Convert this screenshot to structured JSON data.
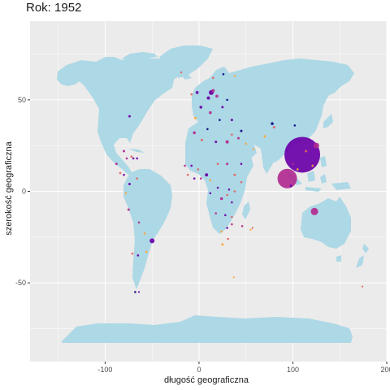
{
  "chart_data": {
    "type": "scatter",
    "title": "Rok: 1952",
    "xlabel": "długość geograficzna",
    "ylabel": "szerokość geograficzna",
    "xlim": [
      -180,
      200
    ],
    "ylim": [
      -93,
      93
    ],
    "x_ticks": [
      -100,
      0,
      100,
      200
    ],
    "y_ticks": [
      -50,
      0,
      50
    ],
    "grid": true,
    "legend": "none",
    "background": "#ebebeb",
    "land_color": "#add8e6",
    "points": [
      {
        "x": 110,
        "y": 20,
        "color": "#6a00a8",
        "size": 22
      },
      {
        "x": 94,
        "y": 7,
        "color": "#b12a90",
        "size": 12
      },
      {
        "x": 125,
        "y": 25,
        "color": "#b12a90",
        "size": 3.5
      },
      {
        "x": 123,
        "y": -11,
        "color": "#b12a90",
        "size": 4.5
      },
      {
        "x": -50,
        "y": -27,
        "color": "#6a00a8",
        "size": 3
      },
      {
        "x": 13,
        "y": 54,
        "color": "#6a00a8",
        "size": 3
      },
      {
        "x": 15,
        "y": 55,
        "color": "#b12a90",
        "size": 2
      },
      {
        "x": 78,
        "y": 37,
        "color": "#0d0887",
        "size": 1.8
      },
      {
        "x": 80,
        "y": 35,
        "color": "#e16462",
        "size": 1.5
      },
      {
        "x": 70,
        "y": 30,
        "color": "#fca636",
        "size": 1.5
      },
      {
        "x": 45,
        "y": 33,
        "color": "#0d0887",
        "size": 1.5
      },
      {
        "x": 42,
        "y": 29,
        "color": "#b12a90",
        "size": 1.5
      },
      {
        "x": 50,
        "y": 26,
        "color": "#fca636",
        "size": 1.3
      },
      {
        "x": 35,
        "y": 31,
        "color": "#e16462",
        "size": 1.3
      },
      {
        "x": 30,
        "y": 27,
        "color": "#b12a90",
        "size": 2
      },
      {
        "x": 18,
        "y": 27,
        "color": "#6a00a8",
        "size": 1.5
      },
      {
        "x": 3,
        "y": 28,
        "color": "#e16462",
        "size": 1.5
      },
      {
        "x": -5,
        "y": 32,
        "color": "#b12a90",
        "size": 1.8
      },
      {
        "x": 9,
        "y": 34,
        "color": "#0d0887",
        "size": 1.3
      },
      {
        "x": 12,
        "y": 43,
        "color": "#b12a90",
        "size": 1.8
      },
      {
        "x": -4,
        "y": 40,
        "color": "#fca636",
        "size": 1.5
      },
      {
        "x": 2,
        "y": 46,
        "color": "#6a00a8",
        "size": 1.8
      },
      {
        "x": 10,
        "y": 51,
        "color": "#6a00a8",
        "size": 2
      },
      {
        "x": -2,
        "y": 54,
        "color": "#6a00a8",
        "size": 1.8
      },
      {
        "x": 19,
        "y": 52,
        "color": "#b12a90",
        "size": 1.8
      },
      {
        "x": 25,
        "y": 46,
        "color": "#6a00a8",
        "size": 1.5
      },
      {
        "x": 22,
        "y": 39,
        "color": "#0d0887",
        "size": 1.3
      },
      {
        "x": 15,
        "y": 62,
        "color": "#e16462",
        "size": 1.3
      },
      {
        "x": 26,
        "y": 64,
        "color": "#0d0887",
        "size": 1.3
      },
      {
        "x": -8,
        "y": 53,
        "color": "#e16462",
        "size": 1.3
      },
      {
        "x": -19,
        "y": 65,
        "color": "#e16462",
        "size": 1.2
      },
      {
        "x": 30,
        "y": 50,
        "color": "#0d0887",
        "size": 1.3
      },
      {
        "x": 35,
        "y": 39,
        "color": "#6a00a8",
        "size": 1.5
      },
      {
        "x": 38,
        "y": 9,
        "color": "#e16462",
        "size": 1.5
      },
      {
        "x": 30,
        "y": 15,
        "color": "#b12a90",
        "size": 1.5
      },
      {
        "x": 45,
        "y": 15,
        "color": "#6a00a8",
        "size": 1.3
      },
      {
        "x": 20,
        "y": 15,
        "color": "#e16462",
        "size": 1.3
      },
      {
        "x": 8,
        "y": 9,
        "color": "#6a00a8",
        "size": 2
      },
      {
        "x": -1,
        "y": 12,
        "color": "#e16462",
        "size": 1.3
      },
      {
        "x": -8,
        "y": 14,
        "color": "#6a00a8",
        "size": 1.3
      },
      {
        "x": -15,
        "y": 14,
        "color": "#b12a90",
        "size": 1.3
      },
      {
        "x": -12,
        "y": 9,
        "color": "#e16462",
        "size": 1.3
      },
      {
        "x": -5,
        "y": 7,
        "color": "#6a00a8",
        "size": 1.3
      },
      {
        "x": 2,
        "y": 7,
        "color": "#b12a90",
        "size": 1.3
      },
      {
        "x": 12,
        "y": 6,
        "color": "#fca636",
        "size": 1.3
      },
      {
        "x": 20,
        "y": 2,
        "color": "#6a00a8",
        "size": 1.3
      },
      {
        "x": 12,
        "y": -1,
        "color": "#6a00a8",
        "size": 1.3
      },
      {
        "x": 24,
        "y": -4,
        "color": "#b12a90",
        "size": 1.8
      },
      {
        "x": 30,
        "y": -2,
        "color": "#e16462",
        "size": 1.3
      },
      {
        "x": 32,
        "y": 1,
        "color": "#6a00a8",
        "size": 1.3
      },
      {
        "x": 38,
        "y": 0,
        "color": "#e16462",
        "size": 1.3
      },
      {
        "x": 45,
        "y": 5,
        "color": "#e16462",
        "size": 1.3
      },
      {
        "x": 35,
        "y": -6,
        "color": "#6a00a8",
        "size": 1.3
      },
      {
        "x": 18,
        "y": -12,
        "color": "#b12a90",
        "size": 1.3
      },
      {
        "x": 28,
        "y": -13,
        "color": "#6a00a8",
        "size": 1.3
      },
      {
        "x": 30,
        "y": -20,
        "color": "#6a00a8",
        "size": 1.3
      },
      {
        "x": 35,
        "y": -14,
        "color": "#e16462",
        "size": 1.3
      },
      {
        "x": 35,
        "y": -18,
        "color": "#b12a90",
        "size": 1.3
      },
      {
        "x": 24,
        "y": -22,
        "color": "#fca636",
        "size": 1.3
      },
      {
        "x": 25,
        "y": -29,
        "color": "#fca636",
        "size": 1.5
      },
      {
        "x": 31,
        "y": -26,
        "color": "#e16462",
        "size": 1.3
      },
      {
        "x": 46,
        "y": -19,
        "color": "#b12a90",
        "size": 1.3
      },
      {
        "x": 57,
        "y": -20,
        "color": "#e16462",
        "size": 1.2
      },
      {
        "x": 55,
        "y": -21,
        "color": "#fca636",
        "size": 1.2
      },
      {
        "x": 37,
        "y": -47,
        "color": "#fca636",
        "size": 1.1
      },
      {
        "x": 58,
        "y": 23,
        "color": "#fca636",
        "size": 1.2
      },
      {
        "x": 98,
        "y": 3,
        "color": "#6a00a8",
        "size": 1.5
      },
      {
        "x": 100,
        "y": 15,
        "color": "#b12a90",
        "size": 1.3
      },
      {
        "x": 105,
        "y": 12,
        "color": "#fca636",
        "size": 1.3
      },
      {
        "x": 121,
        "y": 14,
        "color": "#fca636",
        "size": 1.3
      },
      {
        "x": 114,
        "y": 22,
        "color": "#e16462",
        "size": 1.5
      },
      {
        "x": 102,
        "y": 36,
        "color": "#0d0887",
        "size": 1.3
      },
      {
        "x": -74,
        "y": 41,
        "color": "#6a00a8",
        "size": 1.5
      },
      {
        "x": -80,
        "y": 22,
        "color": "#b12a90",
        "size": 1.5
      },
      {
        "x": -72,
        "y": 19,
        "color": "#e16462",
        "size": 1.3
      },
      {
        "x": -70,
        "y": 18,
        "color": "#6a00a8",
        "size": 1.3
      },
      {
        "x": -77,
        "y": 18,
        "color": "#b12a90",
        "size": 1.3
      },
      {
        "x": -88,
        "y": 15,
        "color": "#b12a90",
        "size": 1.5
      },
      {
        "x": -84,
        "y": 10,
        "color": "#e16462",
        "size": 1.3
      },
      {
        "x": -80,
        "y": 9,
        "color": "#6a00a8",
        "size": 1.3
      },
      {
        "x": -66,
        "y": 18,
        "color": "#6a00a8",
        "size": 1.3
      },
      {
        "x": -74,
        "y": 4,
        "color": "#6a00a8",
        "size": 1.5
      },
      {
        "x": -66,
        "y": 7,
        "color": "#e16462",
        "size": 1.3
      },
      {
        "x": -78,
        "y": -1,
        "color": "#fca636",
        "size": 1.3
      },
      {
        "x": -75,
        "y": -10,
        "color": "#b12a90",
        "size": 1.5
      },
      {
        "x": -64,
        "y": -17,
        "color": "#b12a90",
        "size": 1.3
      },
      {
        "x": -58,
        "y": -23,
        "color": "#fca636",
        "size": 1.3
      },
      {
        "x": -65,
        "y": -35,
        "color": "#6a00a8",
        "size": 1.3
      },
      {
        "x": -56,
        "y": -33,
        "color": "#fca636",
        "size": 1.3
      },
      {
        "x": -71,
        "y": -34,
        "color": "#e16462",
        "size": 1.3
      },
      {
        "x": -68,
        "y": -55,
        "color": "#0d0887",
        "size": 1.3
      },
      {
        "x": -64,
        "y": -55,
        "color": "#6a00a8",
        "size": 1.1
      },
      {
        "x": 174,
        "y": -52,
        "color": "#e16462",
        "size": 1.1
      },
      {
        "x": 38,
        "y": 63,
        "color": "#fca636",
        "size": 1.2
      }
    ]
  }
}
